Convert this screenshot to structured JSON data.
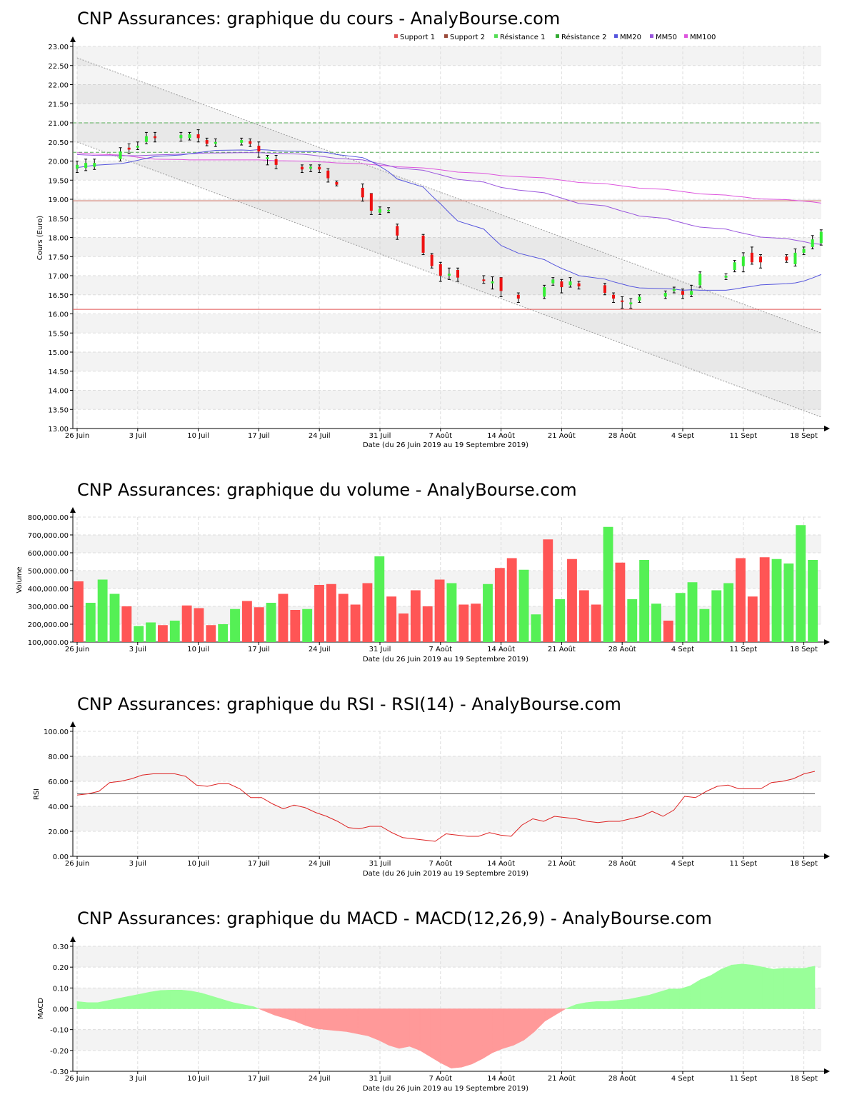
{
  "chart_data": [
    {
      "type": "candlestick",
      "title": "CNP Assurances: graphique du cours - AnalyBourse.com",
      "xlabel": "Date (du 26 Juin 2019 au 19 Septembre 2019)",
      "ylabel": "Cours (Euro)",
      "ylim": [
        13.0,
        23.0
      ],
      "yticks": [
        "13.00",
        "13.50",
        "14.00",
        "14.50",
        "15.00",
        "15.50",
        "16.00",
        "16.50",
        "17.00",
        "17.50",
        "18.00",
        "18.50",
        "19.00",
        "19.50",
        "20.00",
        "20.50",
        "21.00",
        "21.50",
        "22.00",
        "22.50",
        "23.00"
      ],
      "xticks": [
        "26 Juin",
        "3 Juil",
        "10 Juil",
        "17 Juil",
        "24 Juil",
        "31 Juil",
        "7 Août",
        "14 Août",
        "21 Août",
        "28 Août",
        "4 Sept",
        "11 Sept",
        "18 Sept"
      ],
      "grid": true,
      "legend": [
        "Support 1",
        "Support 2",
        "Résistance 1",
        "Résistance 2",
        "MM20",
        "MM50",
        "MM100"
      ],
      "legend_colors": [
        "#e05555",
        "#9a4a3a",
        "#55dd55",
        "#33aa33",
        "#5555dd",
        "#9955dd",
        "#dd55dd"
      ],
      "support_1": 16.12,
      "support_2": 18.96,
      "resistance_1": 20.23,
      "resistance_2": 21.0,
      "candles": [
        {
          "o": 19.8,
          "c": 19.9,
          "h": 20.0,
          "l": 19.7
        },
        {
          "o": 19.82,
          "c": 19.95,
          "h": 20.05,
          "l": 19.75
        },
        {
          "o": 19.85,
          "c": 19.95,
          "h": 20.05,
          "l": 19.78
        },
        {
          "o": 20.05,
          "c": 20.25,
          "h": 20.35,
          "l": 20.0
        },
        {
          "o": 20.35,
          "c": 20.3,
          "h": 20.45,
          "l": 20.2
        },
        {
          "o": 20.35,
          "c": 20.4,
          "h": 20.5,
          "l": 20.3
        },
        {
          "o": 20.5,
          "c": 20.65,
          "h": 20.75,
          "l": 20.45
        },
        {
          "o": 20.65,
          "c": 20.6,
          "h": 20.75,
          "l": 20.5
        },
        {
          "o": 20.6,
          "c": 20.68,
          "h": 20.75,
          "l": 20.52
        },
        {
          "o": 20.6,
          "c": 20.7,
          "h": 20.75,
          "l": 20.55
        },
        {
          "o": 20.7,
          "c": 20.6,
          "h": 20.82,
          "l": 20.5
        },
        {
          "o": 20.55,
          "c": 20.45,
          "h": 20.6,
          "l": 20.4
        },
        {
          "o": 20.45,
          "c": 20.5,
          "h": 20.58,
          "l": 20.38
        },
        {
          "o": 20.48,
          "c": 20.55,
          "h": 20.6,
          "l": 20.42
        },
        {
          "o": 20.52,
          "c": 20.45,
          "h": 20.58,
          "l": 20.38
        },
        {
          "o": 20.4,
          "c": 20.25,
          "h": 20.5,
          "l": 20.1
        },
        {
          "o": 20.05,
          "c": 20.1,
          "h": 20.15,
          "l": 19.9
        },
        {
          "o": 20.05,
          "c": 19.9,
          "h": 20.15,
          "l": 19.8
        },
        {
          "o": 19.85,
          "c": 19.78,
          "h": 19.9,
          "l": 19.7
        },
        {
          "o": 19.8,
          "c": 19.85,
          "h": 19.9,
          "l": 19.72
        },
        {
          "o": 19.85,
          "c": 19.78,
          "h": 19.9,
          "l": 19.7
        },
        {
          "o": 19.75,
          "c": 19.55,
          "h": 19.8,
          "l": 19.45
        },
        {
          "o": 19.45,
          "c": 19.38,
          "h": 19.48,
          "l": 19.35
        },
        {
          "o": 19.3,
          "c": 19.05,
          "h": 19.4,
          "l": 18.95
        },
        {
          "o": 19.15,
          "c": 18.7,
          "h": 19.15,
          "l": 18.6
        },
        {
          "o": 18.65,
          "c": 18.75,
          "h": 18.8,
          "l": 18.6
        },
        {
          "o": 18.7,
          "c": 18.72,
          "h": 18.78,
          "l": 18.65
        },
        {
          "o": 18.3,
          "c": 18.05,
          "h": 18.35,
          "l": 17.95
        },
        {
          "o": 18.05,
          "c": 17.6,
          "h": 18.08,
          "l": 17.55
        },
        {
          "o": 17.55,
          "c": 17.25,
          "h": 17.58,
          "l": 17.2
        },
        {
          "o": 17.3,
          "c": 17.0,
          "h": 17.35,
          "l": 16.85
        },
        {
          "o": 17.0,
          "c": 17.05,
          "h": 17.2,
          "l": 16.9
        },
        {
          "o": 17.15,
          "c": 16.95,
          "h": 17.2,
          "l": 16.85
        },
        {
          "o": 16.9,
          "c": 16.88,
          "h": 17.0,
          "l": 16.8
        },
        {
          "o": 16.8,
          "c": 16.85,
          "h": 16.97,
          "l": 16.65
        },
        {
          "o": 16.95,
          "c": 16.6,
          "h": 16.95,
          "l": 16.45
        },
        {
          "o": 16.5,
          "c": 16.4,
          "h": 16.55,
          "l": 16.3
        },
        {
          "o": 16.45,
          "c": 16.7,
          "h": 16.75,
          "l": 16.4
        },
        {
          "o": 16.8,
          "c": 16.9,
          "h": 16.95,
          "l": 16.75
        },
        {
          "o": 16.85,
          "c": 16.7,
          "h": 16.9,
          "l": 16.55
        },
        {
          "o": 16.75,
          "c": 16.85,
          "h": 16.95,
          "l": 16.7
        },
        {
          "o": 16.8,
          "c": 16.72,
          "h": 16.85,
          "l": 16.65
        },
        {
          "o": 16.75,
          "c": 16.55,
          "h": 16.8,
          "l": 16.5
        },
        {
          "o": 16.5,
          "c": 16.4,
          "h": 16.55,
          "l": 16.3
        },
        {
          "o": 16.35,
          "c": 16.32,
          "h": 16.45,
          "l": 16.15
        },
        {
          "o": 16.25,
          "c": 16.3,
          "h": 16.4,
          "l": 16.15
        },
        {
          "o": 16.35,
          "c": 16.45,
          "h": 16.5,
          "l": 16.3
        },
        {
          "o": 16.45,
          "c": 16.55,
          "h": 16.6,
          "l": 16.4
        },
        {
          "o": 16.6,
          "c": 16.65,
          "h": 16.7,
          "l": 16.55
        },
        {
          "o": 16.6,
          "c": 16.5,
          "h": 16.65,
          "l": 16.4
        },
        {
          "o": 16.5,
          "c": 16.6,
          "h": 16.75,
          "l": 16.45
        },
        {
          "o": 16.75,
          "c": 17.05,
          "h": 17.1,
          "l": 16.7
        },
        {
          "o": 16.95,
          "c": 17.0,
          "h": 17.05,
          "l": 16.9
        },
        {
          "o": 17.15,
          "c": 17.35,
          "h": 17.4,
          "l": 17.1
        },
        {
          "o": 17.25,
          "c": 17.5,
          "h": 17.6,
          "l": 17.1
        },
        {
          "o": 17.6,
          "c": 17.35,
          "h": 17.75,
          "l": 17.3
        },
        {
          "o": 17.5,
          "c": 17.35,
          "h": 17.55,
          "l": 17.2
        },
        {
          "o": 17.5,
          "c": 17.4,
          "h": 17.55,
          "l": 17.35
        },
        {
          "o": 17.3,
          "c": 17.6,
          "h": 17.7,
          "l": 17.25
        },
        {
          "o": 17.6,
          "c": 17.7,
          "h": 17.75,
          "l": 17.55
        },
        {
          "o": 17.75,
          "c": 17.95,
          "h": 18.05,
          "l": 17.7
        },
        {
          "o": 17.85,
          "c": 18.15,
          "h": 18.2,
          "l": 17.8
        }
      ],
      "ma20": [
        19.83,
        19.86,
        19.89,
        19.93,
        19.97,
        20.02,
        20.07,
        20.12,
        20.16,
        20.19,
        20.22,
        20.25,
        20.28,
        20.29,
        20.28,
        20.3,
        20.29,
        20.27,
        20.25,
        20.25,
        20.24,
        20.22,
        20.17,
        20.09,
        19.99,
        19.86,
        19.72,
        19.53,
        19.32,
        19.09,
        18.88,
        18.65,
        18.43,
        18.22,
        18.0,
        17.79,
        17.59,
        17.42,
        17.3,
        17.19,
        17.1,
        17.0,
        16.91,
        16.84,
        16.78,
        16.72,
        16.68,
        16.66,
        16.65,
        16.62,
        16.63,
        16.62,
        16.62,
        16.65,
        16.69,
        16.72,
        16.76,
        16.79,
        16.81,
        16.86,
        16.94,
        17.03
      ],
      "ma50": [
        20.17,
        20.16,
        20.15,
        20.14,
        20.14,
        20.14,
        20.15,
        20.16,
        20.18,
        20.19,
        20.2,
        20.21,
        20.21,
        20.22,
        20.22,
        20.22,
        20.21,
        20.2,
        20.18,
        20.16,
        20.13,
        20.1,
        20.07,
        20.03,
        19.98,
        19.93,
        19.88,
        19.82,
        19.76,
        19.7,
        19.64,
        19.58,
        19.52,
        19.45,
        19.38,
        19.31,
        19.24,
        19.17,
        19.1,
        19.03,
        18.96,
        18.89,
        18.83,
        18.76,
        18.69,
        18.63,
        18.56,
        18.5,
        18.44,
        18.38,
        18.32,
        18.27,
        18.22,
        18.16,
        18.11,
        18.06,
        18.01,
        17.97,
        17.93,
        17.89,
        17.84,
        17.82
      ],
      "ma100": [
        20.22,
        20.2,
        20.18,
        20.16,
        20.13,
        20.1,
        20.07,
        20.05,
        20.04,
        20.03,
        20.03,
        20.03,
        20.03,
        20.03,
        20.03,
        20.03,
        20.02,
        20.01,
        20.0,
        19.99,
        19.98,
        19.97,
        19.95,
        19.93,
        19.91,
        19.89,
        19.87,
        19.85,
        19.82,
        19.8,
        19.77,
        19.74,
        19.71,
        19.68,
        19.65,
        19.62,
        19.59,
        19.56,
        19.53,
        19.5,
        19.47,
        19.44,
        19.41,
        19.38,
        19.35,
        19.32,
        19.29,
        19.26,
        19.23,
        19.2,
        19.17,
        19.14,
        19.11,
        19.08,
        19.06,
        19.03,
        19.01,
        18.99,
        18.97,
        18.95,
        18.93,
        18.9
      ],
      "trend_upper": [
        22.7,
        15.5
      ],
      "trend_lower": [
        20.5,
        13.3
      ]
    },
    {
      "type": "bar",
      "title": "CNP Assurances: graphique du volume - AnalyBourse.com",
      "xlabel": "Date (du 26 Juin 2019 au 19 Septembre 2019)",
      "ylabel": "Volume",
      "ylim": [
        100000,
        800000
      ],
      "yticks": [
        "100,000.00",
        "200,000.00",
        "300,000.00",
        "400,000.00",
        "500,000.00",
        "600,000.00",
        "700,000.00",
        "800,000.00"
      ],
      "xticks": [
        "26 Juin",
        "3 Juil",
        "10 Juil",
        "17 Juil",
        "24 Juil",
        "31 Juil",
        "7 Août",
        "14 Août",
        "21 Août",
        "28 Août",
        "4 Sept",
        "11 Sept",
        "18 Sept"
      ],
      "values": [
        440000,
        320000,
        450000,
        370000,
        300000,
        190000,
        210000,
        195000,
        220000,
        305000,
        290000,
        195000,
        200000,
        285000,
        330000,
        295000,
        320000,
        370000,
        280000,
        285000,
        420000,
        425000,
        370000,
        310000,
        430000,
        580000,
        355000,
        260000,
        390000,
        300000,
        450000,
        430000,
        310000,
        315000,
        425000,
        515000,
        570000,
        505000,
        255000,
        675000,
        340000,
        565000,
        390000,
        310000,
        745000,
        545000,
        340000,
        560000,
        315000,
        220000,
        375000,
        435000,
        285000,
        390000,
        430000,
        570000,
        355000,
        575000,
        565000,
        540000,
        755000,
        560000
      ],
      "up": [
        false,
        true,
        true,
        true,
        false,
        true,
        true,
        false,
        true,
        false,
        false,
        false,
        true,
        true,
        false,
        false,
        true,
        false,
        false,
        true,
        false,
        false,
        false,
        false,
        false,
        true,
        false,
        false,
        false,
        false,
        false,
        true,
        false,
        false,
        true,
        false,
        false,
        true,
        true,
        false,
        true,
        false,
        false,
        false,
        true,
        false,
        true,
        true,
        true,
        false,
        true,
        true,
        true,
        true,
        true,
        false,
        false,
        false,
        true,
        true,
        true,
        true
      ],
      "grid": true
    },
    {
      "type": "line",
      "title": "CNP Assurances: graphique du RSI - RSI(14) - AnalyBourse.com",
      "xlabel": "Date (du 26 Juin 2019 au 19 Septembre 2019)",
      "ylabel": "RSI",
      "ylim": [
        0,
        100
      ],
      "yticks": [
        "0.00",
        "20.00",
        "40.00",
        "60.00",
        "80.00",
        "100.00"
      ],
      "xticks": [
        "26 Juin",
        "3 Juil",
        "10 Juil",
        "17 Juil",
        "24 Juil",
        "31 Juil",
        "7 Août",
        "14 Août",
        "21 Août",
        "28 Août",
        "4 Sept",
        "11 Sept",
        "18 Sept"
      ],
      "reference": 50,
      "values": [
        49,
        50,
        52,
        59,
        60,
        62,
        65,
        66,
        66,
        66,
        64,
        57,
        56,
        58,
        58,
        54,
        47,
        47,
        42,
        38,
        41,
        39,
        35,
        32,
        28,
        23,
        22,
        24,
        24,
        19,
        15,
        14,
        13,
        12,
        18,
        17,
        16,
        16,
        19,
        17,
        16,
        25,
        30,
        28,
        32,
        31,
        30,
        28,
        27,
        28,
        28,
        30,
        32,
        36,
        32,
        37,
        48,
        47,
        52,
        56,
        57,
        54,
        54,
        54,
        59,
        60,
        62,
        66,
        68
      ],
      "grid": true
    },
    {
      "type": "area",
      "title": "CNP Assurances: graphique du MACD - MACD(12,26,9) - AnalyBourse.com",
      "xlabel": "Date (du 26 Juin 2019 au 19 Septembre 2019)",
      "ylabel": "MACD",
      "ylim": [
        -0.3,
        0.3
      ],
      "yticks": [
        "-0.30",
        "-0.20",
        "-0.10",
        "0.00",
        "0.10",
        "0.20",
        "0.30"
      ],
      "xticks": [
        "26 Juin",
        "3 Juil",
        "10 Juil",
        "17 Juil",
        "24 Juil",
        "31 Juil",
        "7 Août",
        "14 Août",
        "21 Août",
        "28 Août",
        "4 Sept",
        "11 Sept",
        "18 Sept"
      ],
      "values": [
        0.035,
        0.03,
        0.03,
        0.04,
        0.05,
        0.06,
        0.07,
        0.08,
        0.088,
        0.09,
        0.09,
        0.085,
        0.075,
        0.06,
        0.045,
        0.03,
        0.02,
        0.01,
        -0.01,
        -0.03,
        -0.045,
        -0.06,
        -0.08,
        -0.095,
        -0.1,
        -0.105,
        -0.11,
        -0.12,
        -0.13,
        -0.15,
        -0.175,
        -0.19,
        -0.18,
        -0.2,
        -0.23,
        -0.26,
        -0.285,
        -0.28,
        -0.265,
        -0.24,
        -0.21,
        -0.19,
        -0.175,
        -0.15,
        -0.11,
        -0.06,
        -0.03,
        0.0,
        0.02,
        0.03,
        0.035,
        0.035,
        0.04,
        0.045,
        0.055,
        0.065,
        0.08,
        0.095,
        0.095,
        0.11,
        0.14,
        0.16,
        0.19,
        0.21,
        0.215,
        0.21,
        0.2,
        0.19,
        0.195,
        0.195,
        0.195,
        0.205
      ],
      "grid": true
    }
  ]
}
